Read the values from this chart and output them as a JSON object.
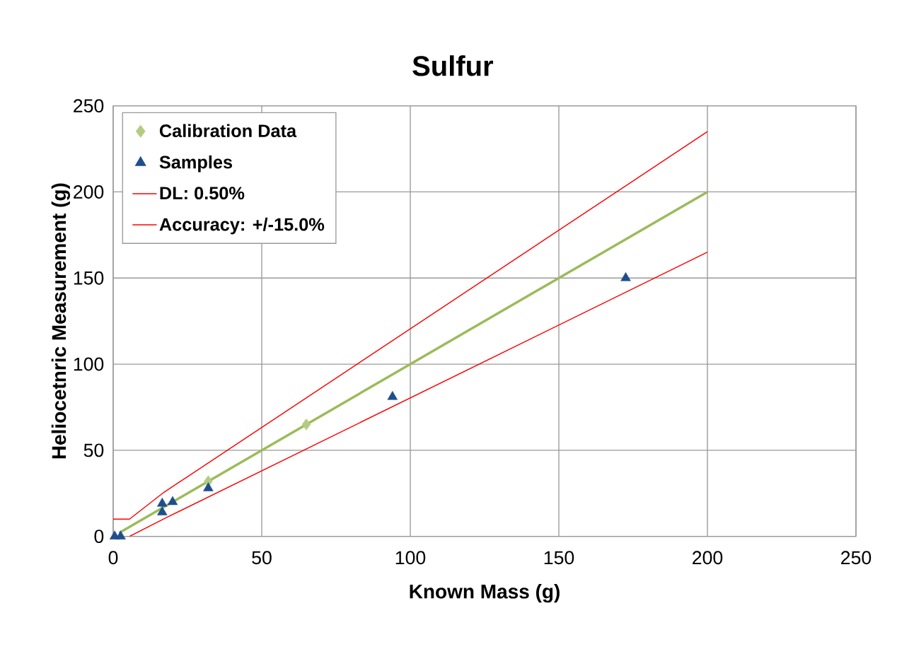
{
  "chart_data": {
    "type": "scatter",
    "title": "Sulfur",
    "xlabel": "Known Mass  (g)",
    "ylabel": "Heliocetnric Measurement  (g)",
    "xlim": [
      0,
      250
    ],
    "ylim": [
      0,
      250
    ],
    "xticks": [
      0,
      50,
      100,
      150,
      200,
      250
    ],
    "yticks": [
      0,
      50,
      100,
      150,
      200,
      250
    ],
    "grid": true,
    "legend": "top left",
    "series": [
      {
        "name": "Calibration Data",
        "marker": "diamond",
        "color": "#b3cc82",
        "x": [
          32,
          65
        ],
        "values": [
          32,
          65
        ]
      },
      {
        "name": "Samples",
        "marker": "triangle",
        "color": "#1f4e8c",
        "x": [
          0.5,
          2.5,
          16.5,
          16.5,
          20,
          32,
          94,
          172.5
        ],
        "values": [
          0,
          0,
          14,
          19,
          20,
          28,
          81,
          150
        ]
      },
      {
        "name": "DL: 0.50%",
        "type": "line",
        "color": "#ff0000",
        "x": [
          0,
          5.5,
          17,
          200
        ],
        "values": [
          10,
          10,
          25.5,
          235
        ]
      },
      {
        "name": "Accuracy: +/-15.0%",
        "type": "line",
        "color": "#ff0000",
        "x": [
          5.5,
          18,
          200
        ],
        "values": [
          0,
          11,
          165
        ]
      },
      {
        "type": "line",
        "color": "#9bbb59",
        "x": [
          2,
          200
        ],
        "values": [
          2,
          200
        ]
      }
    ]
  }
}
